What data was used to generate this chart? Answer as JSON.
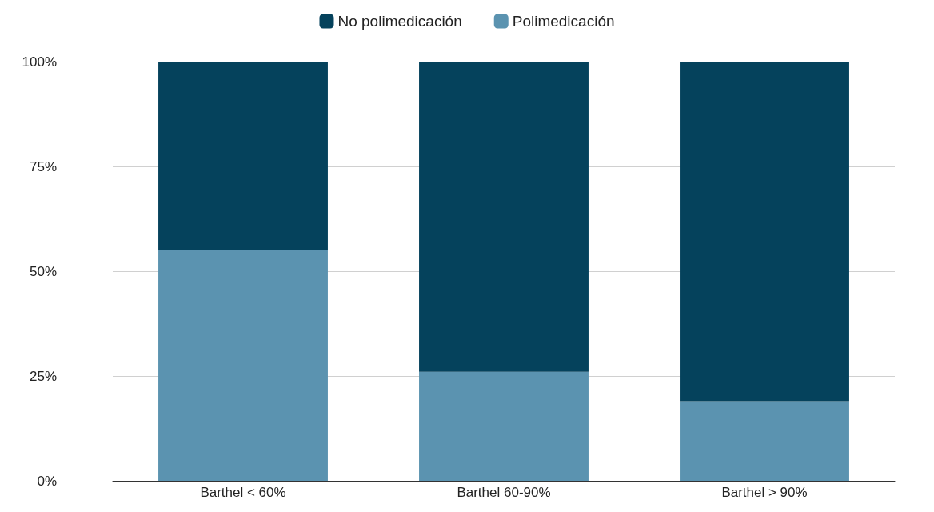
{
  "chart_data": {
    "type": "bar",
    "stacked": true,
    "categories": [
      "Barthel < 60%",
      "Barthel 60-90%",
      "Barthel > 90%"
    ],
    "series": [
      {
        "name": "Polimedicación",
        "color": "#5b93b0",
        "values": [
          55,
          26,
          19
        ]
      },
      {
        "name": "No polimedicación",
        "color": "#05425c",
        "values": [
          45,
          74,
          81
        ]
      }
    ],
    "ylim": [
      0,
      100
    ],
    "yticks": [
      {
        "value": 0,
        "label": "0%"
      },
      {
        "value": 25,
        "label": "25%"
      },
      {
        "value": 50,
        "label": "50%"
      },
      {
        "value": 75,
        "label": "75%"
      },
      {
        "value": 100,
        "label": "100%"
      }
    ],
    "grid": "y",
    "legend": "top"
  }
}
